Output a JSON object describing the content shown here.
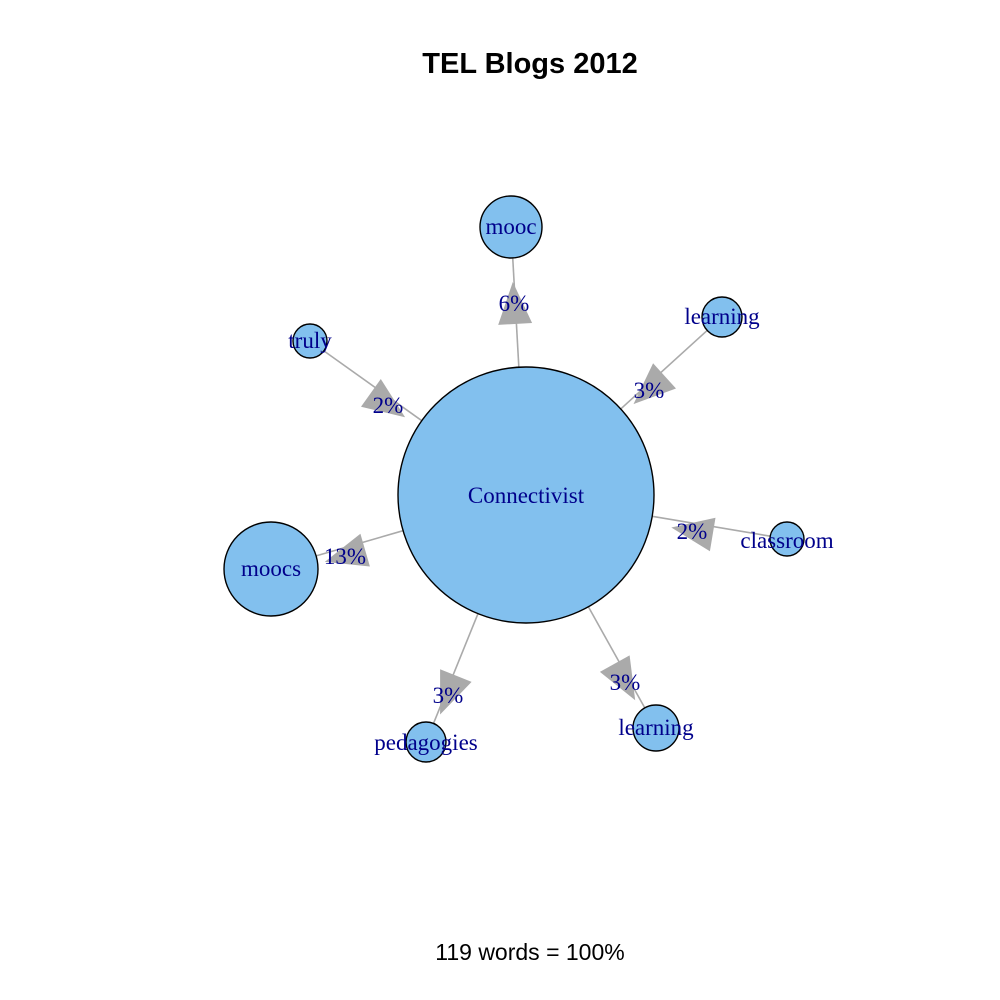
{
  "title": "TEL Blogs 2012",
  "footer": "119 words = 100%",
  "colors": {
    "node_fill": "#82c0ee",
    "node_stroke": "#000000",
    "edge": "#aaaaaa",
    "label": "#00008b"
  },
  "center": {
    "id": "connectivist",
    "label": "Connectivist"
  },
  "edges": [
    {
      "id": "mooc",
      "label": "mooc",
      "percent": "6%",
      "direction": "outgoing"
    },
    {
      "id": "learning-1",
      "label": "learning",
      "percent": "3%",
      "direction": "incoming"
    },
    {
      "id": "classroom",
      "label": "classroom",
      "percent": "2%",
      "direction": "incoming"
    },
    {
      "id": "learning-2",
      "label": "learning",
      "percent": "3%",
      "direction": "outgoing"
    },
    {
      "id": "pedagogies",
      "label": "pedagogies",
      "percent": "3%",
      "direction": "outgoing"
    },
    {
      "id": "moocs",
      "label": "moocs",
      "percent": "13%",
      "direction": "outgoing"
    },
    {
      "id": "truly",
      "label": "truly",
      "percent": "2%",
      "direction": "incoming"
    }
  ]
}
